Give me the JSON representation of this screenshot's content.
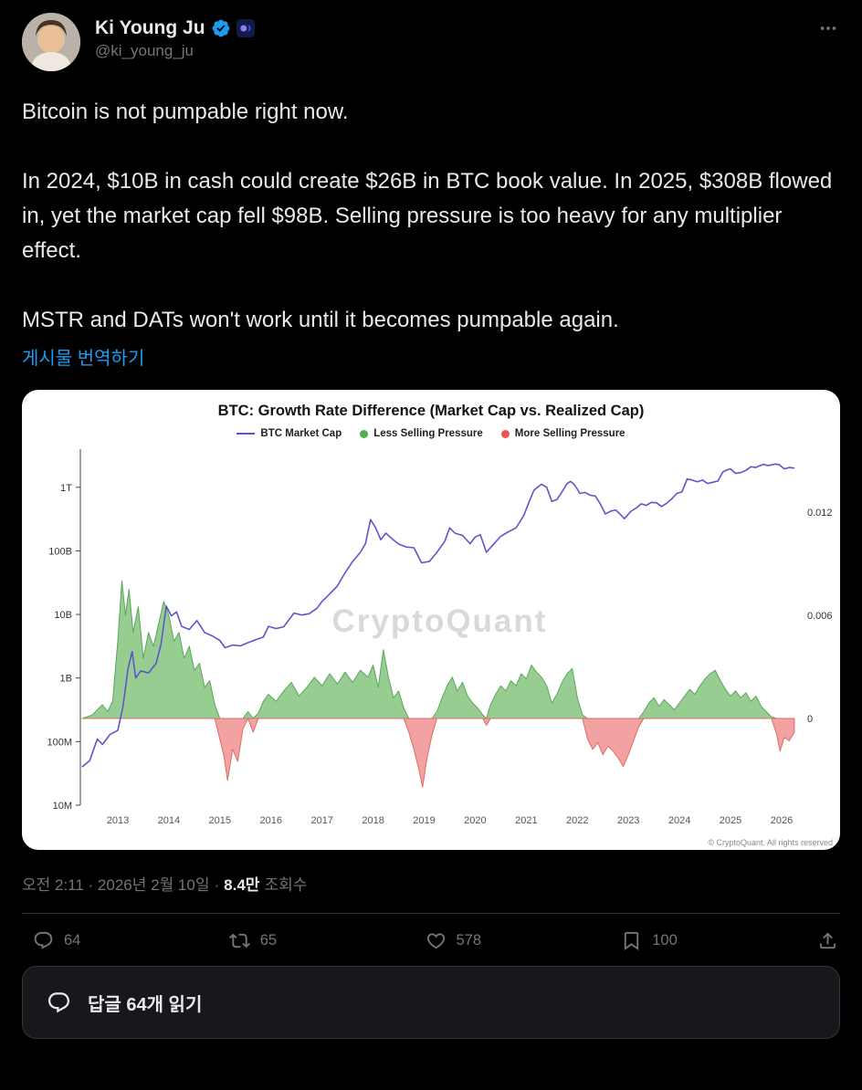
{
  "colors": {
    "background": "#000000",
    "text_primary": "#e7e9ea",
    "text_secondary": "#71767b",
    "link_blue": "#1d9bf0",
    "verified_blue": "#1d9bf0",
    "card_background": "#ffffff"
  },
  "icons": [
    "more-icon",
    "verified-icon",
    "affiliate-badge-icon",
    "reply-icon",
    "repost-icon",
    "like-icon",
    "bookmark-icon",
    "share-icon",
    "speech-bubble-icon"
  ],
  "header": {
    "display_name": "Ki Young Ju",
    "handle": "@ki_young_ju"
  },
  "tweet": {
    "paragraphs": [
      "Bitcoin is not pumpable right now.",
      "In 2024, $10B in cash could create $26B in BTC book value. In 2025, $308B flowed in, yet the market cap fell $98B. Selling pressure is too heavy for any multiplier effect.",
      "MSTR and DATs won't work until it becomes pumpable again."
    ],
    "translate_link": "게시물 번역하기"
  },
  "chart_data": {
    "type": "line+area",
    "title": "BTC: Growth Rate Difference (Market Cap vs. Realized Cap)",
    "watermark": "CryptoQuant",
    "copyright": "© CryptoQuant. All rights reserved",
    "legend": [
      {
        "label": "BTC Market Cap",
        "color": "#6055c8",
        "marker": "line"
      },
      {
        "label": "Less Selling Pressure",
        "color": "#4caf50",
        "marker": "dot"
      },
      {
        "label": "More Selling Pressure",
        "color": "#ef5350",
        "marker": "dot"
      }
    ],
    "x_ticks": [
      2013,
      2014,
      2015,
      2016,
      2017,
      2018,
      2019,
      2020,
      2021,
      2022,
      2023,
      2024,
      2025,
      2026
    ],
    "left_axis": {
      "scale": "log",
      "unit": "billions_usd",
      "ticks": [
        {
          "value": 1000,
          "label": "1T"
        },
        {
          "value": 100,
          "label": "100B"
        },
        {
          "value": 10,
          "label": "10B"
        },
        {
          "value": 1,
          "label": "1B"
        },
        {
          "value": 0.1,
          "label": "100M"
        },
        {
          "value": 0.01,
          "label": "10M"
        }
      ]
    },
    "right_axis": {
      "scale": "linear",
      "ticks": [
        {
          "value": 0.012,
          "label": "0.012"
        },
        {
          "value": 0.006,
          "label": "0.006"
        },
        {
          "value": 0,
          "label": "0"
        }
      ]
    },
    "series": {
      "market_cap": {
        "name": "BTC Market Cap",
        "color": "#6055c8",
        "x": [
          2012.3,
          2012.45,
          2012.6,
          2012.7,
          2012.85,
          2013.0,
          2013.1,
          2013.2,
          2013.28,
          2013.35,
          2013.45,
          2013.6,
          2013.75,
          2013.85,
          2013.95,
          2014.05,
          2014.15,
          2014.25,
          2014.4,
          2014.55,
          2014.7,
          2014.85,
          2015.0,
          2015.1,
          2015.25,
          2015.4,
          2015.55,
          2015.7,
          2015.85,
          2015.95,
          2016.1,
          2016.25,
          2016.45,
          2016.6,
          2016.75,
          2016.9,
          2017.0,
          2017.15,
          2017.3,
          2017.45,
          2017.6,
          2017.75,
          2017.85,
          2017.95,
          2018.05,
          2018.15,
          2018.25,
          2018.35,
          2018.5,
          2018.65,
          2018.8,
          2018.95,
          2019.1,
          2019.25,
          2019.4,
          2019.5,
          2019.6,
          2019.75,
          2019.9,
          2020.0,
          2020.1,
          2020.22,
          2020.35,
          2020.5,
          2020.65,
          2020.8,
          2020.95,
          2021.05,
          2021.15,
          2021.3,
          2021.4,
          2021.5,
          2021.6,
          2021.7,
          2021.8,
          2021.87,
          2021.95,
          2022.05,
          2022.15,
          2022.25,
          2022.35,
          2022.45,
          2022.55,
          2022.65,
          2022.75,
          2022.85,
          2022.92,
          2023.05,
          2023.15,
          2023.25,
          2023.35,
          2023.45,
          2023.55,
          2023.65,
          2023.75,
          2023.85,
          2023.95,
          2024.05,
          2024.15,
          2024.25,
          2024.35,
          2024.45,
          2024.55,
          2024.65,
          2024.75,
          2024.85,
          2024.95,
          2025.0,
          2025.1,
          2025.2,
          2025.3,
          2025.4,
          2025.5,
          2025.55,
          2025.65,
          2025.72,
          2025.8,
          2025.87,
          2025.95,
          2026.05,
          2026.15,
          2026.25
        ],
        "y_billions_usd": [
          0.04,
          0.05,
          0.11,
          0.09,
          0.13,
          0.15,
          0.35,
          1.4,
          2.6,
          1.0,
          1.3,
          1.2,
          1.7,
          3.5,
          13.5,
          9.5,
          11,
          6.5,
          5.8,
          8.0,
          5.2,
          4.6,
          3.9,
          3.0,
          3.3,
          3.2,
          3.6,
          4.0,
          4.4,
          6.5,
          6.0,
          6.4,
          10.5,
          9.8,
          10.3,
          12.5,
          16,
          21,
          28,
          45,
          68,
          95,
          130,
          310,
          230,
          150,
          190,
          160,
          128,
          115,
          112,
          65,
          68,
          95,
          140,
          230,
          190,
          175,
          130,
          165,
          180,
          95,
          125,
          170,
          200,
          230,
          360,
          580,
          900,
          1120,
          1000,
          600,
          640,
          850,
          1150,
          1240,
          1080,
          800,
          830,
          750,
          730,
          550,
          380,
          420,
          440,
          370,
          320,
          420,
          470,
          550,
          520,
          580,
          570,
          500,
          560,
          660,
          800,
          850,
          1350,
          1300,
          1220,
          1300,
          1150,
          1200,
          1250,
          1750,
          1900,
          1950,
          1650,
          1700,
          1850,
          2100,
          2050,
          2150,
          2300,
          2200,
          2250,
          2320,
          2280,
          1950,
          2050,
          2000
        ]
      },
      "growth_rate_diff": {
        "name": "Growth Rate Difference (Market Cap vs. Realized Cap)",
        "positive_color": "#97cd90",
        "negative_color": "#f2a2a0",
        "positive_edge": "#57a85a",
        "negative_edge": "#e06a68",
        "x": [
          2012.3,
          2012.5,
          2012.7,
          2012.8,
          2012.9,
          2013.0,
          2013.08,
          2013.15,
          2013.22,
          2013.3,
          2013.4,
          2013.5,
          2013.6,
          2013.7,
          2013.8,
          2013.9,
          2014.0,
          2014.1,
          2014.2,
          2014.3,
          2014.4,
          2014.5,
          2014.6,
          2014.7,
          2014.8,
          2014.9,
          2015.0,
          2015.08,
          2015.15,
          2015.25,
          2015.35,
          2015.45,
          2015.55,
          2015.65,
          2015.75,
          2015.85,
          2015.95,
          2016.1,
          2016.25,
          2016.4,
          2016.55,
          2016.7,
          2016.85,
          2017.0,
          2017.15,
          2017.3,
          2017.45,
          2017.6,
          2017.75,
          2017.9,
          2018.0,
          2018.1,
          2018.2,
          2018.3,
          2018.4,
          2018.5,
          2018.6,
          2018.7,
          2018.8,
          2018.9,
          2018.97,
          2019.05,
          2019.15,
          2019.25,
          2019.35,
          2019.45,
          2019.55,
          2019.65,
          2019.75,
          2019.85,
          2019.95,
          2020.05,
          2020.15,
          2020.22,
          2020.3,
          2020.4,
          2020.5,
          2020.6,
          2020.7,
          2020.8,
          2020.9,
          2021.0,
          2021.1,
          2021.2,
          2021.3,
          2021.4,
          2021.5,
          2021.6,
          2021.7,
          2021.8,
          2021.9,
          2022.0,
          2022.1,
          2022.2,
          2022.3,
          2022.4,
          2022.5,
          2022.6,
          2022.7,
          2022.8,
          2022.9,
          2023.0,
          2023.1,
          2023.2,
          2023.3,
          2023.4,
          2023.5,
          2023.6,
          2023.7,
          2023.8,
          2023.9,
          2024.0,
          2024.1,
          2024.2,
          2024.3,
          2024.4,
          2024.5,
          2024.6,
          2024.7,
          2024.8,
          2024.9,
          2025.0,
          2025.1,
          2025.2,
          2025.3,
          2025.4,
          2025.5,
          2025.6,
          2025.7,
          2025.8,
          2025.9,
          2025.97,
          2026.05,
          2026.15,
          2026.25
        ],
        "y": [
          0.0,
          0.0002,
          0.0008,
          0.0004,
          0.001,
          0.0045,
          0.008,
          0.006,
          0.0075,
          0.005,
          0.0065,
          0.0035,
          0.005,
          0.0042,
          0.0055,
          0.0068,
          0.006,
          0.0045,
          0.005,
          0.0035,
          0.0042,
          0.0028,
          0.0032,
          0.0018,
          0.0022,
          0.0008,
          -0.0012,
          -0.0022,
          -0.0036,
          -0.0018,
          -0.0025,
          -0.0006,
          0.0004,
          -0.0008,
          0.0003,
          0.001,
          0.0014,
          0.001,
          0.0016,
          0.0021,
          0.0013,
          0.0018,
          0.0024,
          0.0019,
          0.0026,
          0.002,
          0.0027,
          0.0021,
          0.0028,
          0.0024,
          0.0031,
          0.0018,
          0.004,
          0.0024,
          0.0012,
          0.0016,
          0.0006,
          -0.0008,
          -0.0018,
          -0.003,
          -0.004,
          -0.0024,
          -0.001,
          0.0004,
          0.0012,
          0.0019,
          0.0024,
          0.0016,
          0.0021,
          0.0013,
          0.0009,
          0.0006,
          0.0002,
          -0.0004,
          0.0008,
          0.0014,
          0.0019,
          0.0016,
          0.0022,
          0.0019,
          0.0026,
          0.0023,
          0.0031,
          0.0027,
          0.0024,
          0.0019,
          0.0009,
          0.0014,
          0.0021,
          0.0026,
          0.0029,
          0.0012,
          0.0002,
          -0.0012,
          -0.0018,
          -0.0014,
          -0.0021,
          -0.0016,
          -0.0019,
          -0.0023,
          -0.0028,
          -0.0021,
          -0.0013,
          -0.0005,
          0.0004,
          0.0009,
          0.0012,
          0.0007,
          0.0011,
          0.0008,
          0.0005,
          0.0009,
          0.0013,
          0.0017,
          0.0014,
          0.0019,
          0.0023,
          0.0026,
          0.0028,
          0.0022,
          0.0017,
          0.0013,
          0.0016,
          0.0012,
          0.0015,
          0.001,
          0.0013,
          0.0007,
          0.0004,
          0.0001,
          -0.0009,
          -0.0019,
          -0.0011,
          -0.0013,
          -0.0008
        ]
      }
    }
  },
  "meta": {
    "time_and_date": "오전 2:11 · 2026년 2월 10일",
    "separator": "·",
    "views_value": "8.4만",
    "views_label": "조회수"
  },
  "actions": {
    "reply_count": "64",
    "repost_count": "65",
    "like_count": "578",
    "bookmark_count": "100"
  },
  "reply_bar": {
    "label": "답글 64개 읽기"
  }
}
